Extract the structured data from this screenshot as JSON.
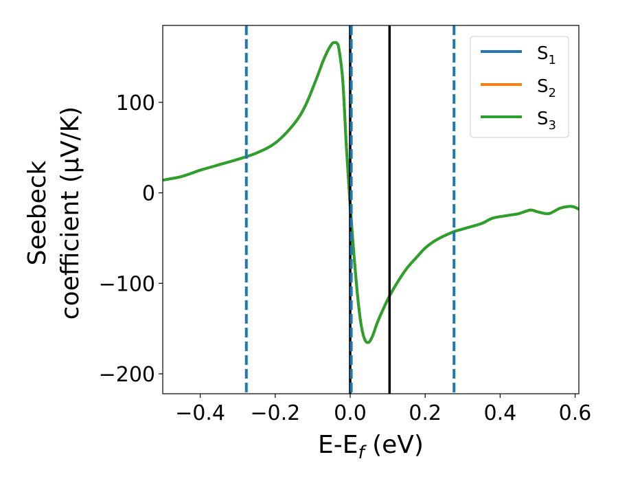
{
  "chart_data": {
    "type": "line",
    "title": "",
    "xlabel": {
      "main": "E-E",
      "sub": "f",
      "unit": " (eV)"
    },
    "ylabel": {
      "line1": "Seebeck",
      "line2": "coefficient  (μV/K)"
    },
    "xlim": [
      -0.5,
      0.61
    ],
    "ylim": [
      -222,
      185
    ],
    "xticks": [
      -0.4,
      -0.2,
      0.0,
      0.2,
      0.4,
      0.6
    ],
    "xtick_labels": [
      "−0.4",
      "−0.2",
      "0.0",
      "0.2",
      "0.4",
      "0.6"
    ],
    "yticks": [
      -200,
      -100,
      0,
      100
    ],
    "ytick_labels": [
      "−200",
      "−100",
      "0",
      "100"
    ],
    "grid": false,
    "legend_position": "top-right",
    "series": [
      {
        "name": "S",
        "sub": "1",
        "color": "#1f77b4"
      },
      {
        "name": "S",
        "sub": "2",
        "color": "#ff7f0e"
      },
      {
        "name": "S",
        "sub": "3",
        "color": "#2ca02c"
      }
    ],
    "x": [
      -0.5,
      -0.45,
      -0.4,
      -0.35,
      -0.3,
      -0.25,
      -0.2,
      -0.15,
      -0.12,
      -0.09,
      -0.07,
      -0.05,
      -0.04,
      -0.035,
      -0.03,
      -0.02,
      -0.01,
      0.0,
      0.01,
      0.02,
      0.03,
      0.04,
      0.05,
      0.06,
      0.07,
      0.08,
      0.1,
      0.12,
      0.15,
      0.18,
      0.2,
      0.23,
      0.27,
      0.3,
      0.35,
      0.38,
      0.42,
      0.45,
      0.48,
      0.5,
      0.53,
      0.56,
      0.59,
      0.61
    ],
    "y": [
      14,
      18,
      25,
      31,
      37,
      44,
      55,
      76,
      96,
      126,
      148,
      164,
      166,
      165,
      159,
      125,
      50,
      -15,
      -68,
      -115,
      -148,
      -163,
      -165,
      -158,
      -146,
      -136,
      -118,
      -103,
      -84,
      -70,
      -61,
      -52,
      -44,
      -40,
      -34,
      -28,
      -25,
      -23,
      -19,
      -21,
      -23,
      -17,
      -15,
      -18
    ],
    "vlines": [
      {
        "x": -0.277,
        "style": "dashed",
        "color": "#1f77b4"
      },
      {
        "x": 0.0,
        "style": "solid",
        "color": "#000000"
      },
      {
        "x": 0.003,
        "style": "dashed",
        "color": "#1f77b4"
      },
      {
        "x": 0.105,
        "style": "solid",
        "color": "#000000"
      },
      {
        "x": 0.277,
        "style": "dashed",
        "color": "#1f77b4"
      }
    ]
  }
}
